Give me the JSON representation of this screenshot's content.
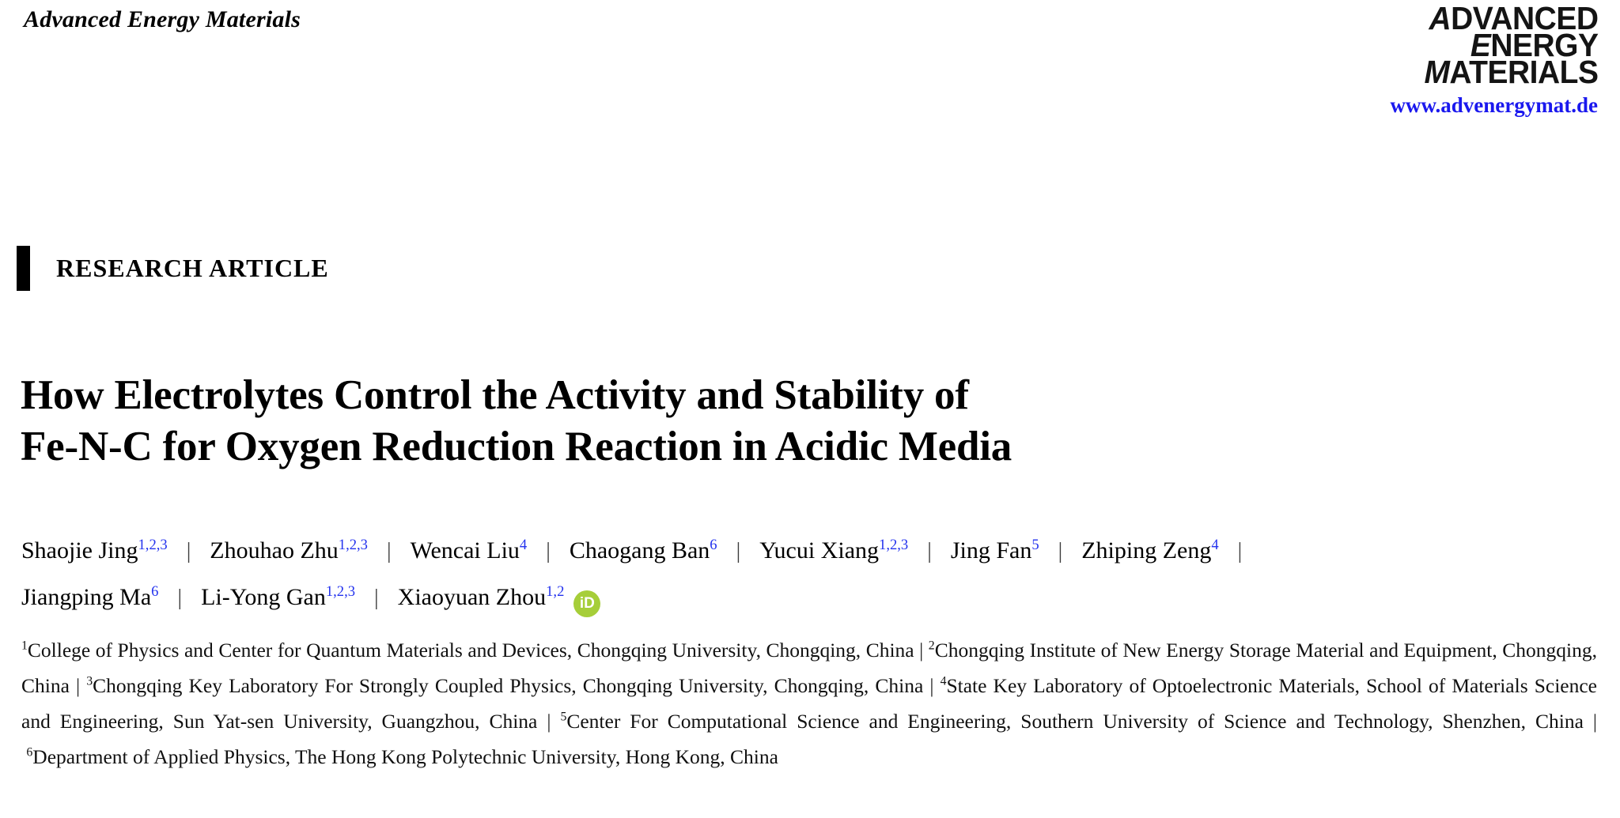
{
  "journal": {
    "running_head": "Advanced Energy Materials",
    "logo_lines": [
      "ADVANCED",
      "ENERGY",
      "MATERIALS"
    ],
    "website": "www.advenergymat.de"
  },
  "article": {
    "type_label": "RESEARCH ARTICLE",
    "title_lines": [
      "How Electrolytes Control the Activity and Stability of",
      "Fe-N-C for Oxygen Reduction Reaction in Acidic Media"
    ]
  },
  "author_separator": "|",
  "orcid_icon": {
    "label": "iD",
    "color": "#a6ce39"
  },
  "authors": [
    {
      "name": "Shaojie Jing",
      "sup": "1,2,3"
    },
    {
      "name": "Zhouhao Zhu",
      "sup": "1,2,3"
    },
    {
      "name": "Wencai Liu",
      "sup": "4"
    },
    {
      "name": "Chaogang Ban",
      "sup": "6"
    },
    {
      "name": "Yucui Xiang",
      "sup": "1,2,3"
    },
    {
      "name": "Jing Fan",
      "sup": "5"
    },
    {
      "name": "Zhiping Zeng",
      "sup": "4",
      "break_after": true
    },
    {
      "name": "Jiangping Ma",
      "sup": "6"
    },
    {
      "name": "Li-Yong Gan",
      "sup": "1,2,3"
    },
    {
      "name": "Xiaoyuan Zhou",
      "sup": "1,2",
      "orcid": true
    }
  ],
  "affiliation_separator": "|",
  "affiliations": [
    {
      "sup": "1",
      "text": "College of Physics and Center for Quantum Materials and Devices, Chongqing University, Chongqing, China"
    },
    {
      "sup": "2",
      "text": "Chongqing Institute of New Energy Storage Material and Equipment, Chongqing, China"
    },
    {
      "sup": "3",
      "text": "Chongqing Key Laboratory For Strongly Coupled Physics, Chongqing University, Chongqing, China"
    },
    {
      "sup": "4",
      "text": "State Key Laboratory of Optoelectronic Materials, School of Materials Science and Engineering, Sun Yat-sen University, Guangzhou, China"
    },
    {
      "sup": "5",
      "text": "Center For Computational Science and Engineering, Southern University of Science and Technology, Shenzhen, China"
    },
    {
      "sup": "6",
      "text": "Department of Applied Physics, The Hong Kong Polytechnic University, Hong Kong, China"
    }
  ],
  "colors": {
    "superscript_blue": "#2433ee",
    "link_blue": "#1a18ee",
    "orcid_green": "#a6ce39",
    "logo_black": "#141414"
  }
}
